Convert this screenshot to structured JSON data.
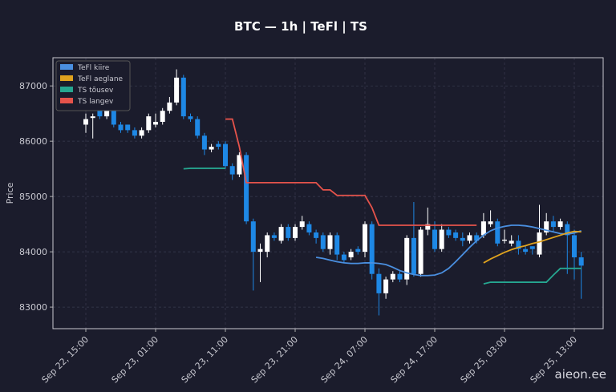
{
  "chart_data": {
    "type": "candlestick",
    "title": "BTC — 1h  |  TeFl  |  TS",
    "y_label": "Price",
    "watermark": "aieon.ee",
    "x": [
      "Sep 22, 15:00",
      "Sep 22, 16:00",
      "Sep 22, 17:00",
      "Sep 22, 18:00",
      "Sep 22, 19:00",
      "Sep 22, 20:00",
      "Sep 22, 21:00",
      "Sep 22, 22:00",
      "Sep 22, 23:00",
      "Sep 23, 00:00",
      "Sep 23, 01:00",
      "Sep 23, 02:00",
      "Sep 23, 03:00",
      "Sep 23, 04:00",
      "Sep 23, 05:00",
      "Sep 23, 06:00",
      "Sep 23, 07:00",
      "Sep 23, 08:00",
      "Sep 23, 09:00",
      "Sep 23, 10:00",
      "Sep 23, 11:00",
      "Sep 23, 12:00",
      "Sep 23, 13:00",
      "Sep 23, 14:00",
      "Sep 23, 15:00",
      "Sep 23, 16:00",
      "Sep 23, 17:00",
      "Sep 23, 18:00",
      "Sep 23, 19:00",
      "Sep 23, 20:00",
      "Sep 23, 21:00",
      "Sep 23, 22:00",
      "Sep 23, 23:00",
      "Sep 24, 00:00",
      "Sep 24, 01:00",
      "Sep 24, 02:00",
      "Sep 24, 03:00",
      "Sep 24, 04:00",
      "Sep 24, 05:00",
      "Sep 24, 06:00",
      "Sep 24, 07:00",
      "Sep 24, 08:00",
      "Sep 24, 09:00",
      "Sep 24, 10:00",
      "Sep 24, 11:00",
      "Sep 24, 12:00",
      "Sep 24, 13:00",
      "Sep 24, 14:00",
      "Sep 24, 15:00",
      "Sep 24, 16:00",
      "Sep 24, 17:00",
      "Sep 24, 18:00",
      "Sep 24, 19:00",
      "Sep 24, 20:00",
      "Sep 24, 21:00",
      "Sep 24, 22:00",
      "Sep 24, 23:00",
      "Sep 25, 00:00",
      "Sep 25, 01:00",
      "Sep 25, 02:00",
      "Sep 25, 03:00",
      "Sep 25, 04:00",
      "Sep 25, 05:00",
      "Sep 25, 06:00",
      "Sep 25, 07:00",
      "Sep 25, 08:00",
      "Sep 25, 09:00",
      "Sep 25, 10:00",
      "Sep 25, 11:00",
      "Sep 25, 12:00",
      "Sep 25, 13:00",
      "Sep 25, 14:00"
    ],
    "open": [
      86300,
      86420,
      86550,
      86450,
      86550,
      86300,
      86300,
      86200,
      86100,
      86200,
      86300,
      86350,
      86550,
      86700,
      87150,
      86450,
      86400,
      86100,
      85850,
      85950,
      85950,
      85550,
      85400,
      85750,
      84550,
      84000,
      84000,
      84300,
      84200,
      84450,
      84250,
      84450,
      84500,
      84350,
      84300,
      84050,
      84300,
      83950,
      83900,
      84050,
      84000,
      84500,
      83600,
      83250,
      83500,
      83600,
      83500,
      84250,
      83600,
      84400,
      84400,
      84050,
      84400,
      84350,
      84250,
      84200,
      84300,
      84300,
      84500,
      84550,
      84200,
      84150,
      84200,
      84050,
      84100,
      83950,
      84350,
      84550,
      84450,
      84500,
      84300,
      83900
    ],
    "high": [
      86500,
      86500,
      86600,
      86600,
      86600,
      86350,
      86300,
      86250,
      86250,
      86500,
      86500,
      86600,
      86800,
      87300,
      87200,
      86500,
      86450,
      86150,
      85950,
      86000,
      86000,
      85600,
      85800,
      85800,
      84600,
      84150,
      84350,
      84350,
      84500,
      84500,
      84500,
      84650,
      84550,
      84400,
      84350,
      84350,
      84350,
      84000,
      84050,
      84100,
      84550,
      84550,
      83700,
      83550,
      83650,
      83650,
      84300,
      84900,
      84450,
      84800,
      84550,
      84500,
      84450,
      84400,
      84350,
      84350,
      84350,
      84700,
      84750,
      84600,
      84400,
      84300,
      84300,
      84100,
      84100,
      84850,
      84700,
      84650,
      84600,
      84550,
      84400,
      84000
    ],
    "low": [
      86150,
      86050,
      86400,
      86400,
      86250,
      86150,
      86150,
      86050,
      86050,
      86150,
      86250,
      86300,
      86500,
      86650,
      86400,
      86350,
      86050,
      85750,
      85800,
      85850,
      85500,
      85300,
      85350,
      84500,
      83300,
      83450,
      83900,
      84200,
      84150,
      84200,
      84200,
      84400,
      84300,
      84150,
      84000,
      83950,
      83850,
      83800,
      83850,
      83950,
      83900,
      83500,
      82850,
      83150,
      83450,
      83450,
      83400,
      83550,
      83550,
      84300,
      84000,
      84000,
      84250,
      84200,
      84100,
      84150,
      84150,
      84250,
      84450,
      84100,
      84150,
      84100,
      83950,
      83950,
      83950,
      83900,
      84300,
      84350,
      84400,
      83600,
      83500,
      83150
    ],
    "close": [
      86400,
      86450,
      86450,
      86550,
      86300,
      86200,
      86200,
      86100,
      86200,
      86450,
      86350,
      86550,
      86700,
      87150,
      86450,
      86400,
      86100,
      85850,
      85900,
      85900,
      85550,
      85400,
      85750,
      84550,
      84000,
      84050,
      84300,
      84250,
      84450,
      84250,
      84450,
      84550,
      84350,
      84250,
      84050,
      84300,
      83950,
      83850,
      84000,
      84000,
      84500,
      83600,
      83250,
      83500,
      83600,
      83500,
      84250,
      83600,
      84400,
      84500,
      84050,
      84400,
      84300,
      84250,
      84200,
      84300,
      84200,
      84550,
      84550,
      84150,
      84220,
      84200,
      84050,
      84000,
      84050,
      84350,
      84550,
      84450,
      84550,
      84300,
      83900,
      83750
    ],
    "up_color": "#ffffff",
    "down_color": "#1e88e5",
    "series": [
      {
        "name": "TeFl kiire",
        "color": "#4a8fe0",
        "values": [
          null,
          null,
          null,
          null,
          null,
          null,
          null,
          null,
          null,
          null,
          null,
          null,
          null,
          null,
          null,
          null,
          null,
          null,
          null,
          null,
          null,
          null,
          null,
          null,
          null,
          null,
          null,
          null,
          null,
          null,
          null,
          null,
          null,
          83900,
          83880,
          83850,
          83820,
          83800,
          83790,
          83790,
          83800,
          83800,
          83790,
          83770,
          83720,
          83660,
          83620,
          83590,
          83570,
          83570,
          83580,
          83620,
          83700,
          83820,
          83950,
          84080,
          84200,
          84300,
          84380,
          84430,
          84460,
          84480,
          84480,
          84470,
          84450,
          84420,
          84390,
          84360,
          84330,
          84320,
          84340,
          84380
        ]
      },
      {
        "name": "TeFl aeglane",
        "color": "#e0a31e",
        "values": [
          null,
          null,
          null,
          null,
          null,
          null,
          null,
          null,
          null,
          null,
          null,
          null,
          null,
          null,
          null,
          null,
          null,
          null,
          null,
          null,
          null,
          null,
          null,
          null,
          null,
          null,
          null,
          null,
          null,
          null,
          null,
          null,
          null,
          null,
          null,
          null,
          null,
          null,
          null,
          null,
          null,
          null,
          null,
          null,
          null,
          null,
          null,
          null,
          null,
          null,
          null,
          null,
          null,
          null,
          null,
          null,
          null,
          83800,
          83870,
          83930,
          83990,
          84040,
          84080,
          84110,
          84150,
          84180,
          84220,
          84260,
          84300,
          84340,
          84370,
          84360
        ]
      },
      {
        "name": "TS tõusev",
        "color": "#26a690",
        "values": [
          null,
          null,
          null,
          null,
          null,
          null,
          null,
          null,
          null,
          null,
          null,
          null,
          null,
          null,
          85500,
          85510,
          85510,
          85510,
          85510,
          85510,
          85510,
          null,
          null,
          null,
          null,
          null,
          null,
          null,
          null,
          null,
          null,
          null,
          null,
          null,
          null,
          null,
          null,
          null,
          null,
          null,
          null,
          null,
          null,
          null,
          null,
          null,
          null,
          null,
          null,
          null,
          null,
          null,
          null,
          null,
          null,
          null,
          null,
          83420,
          83450,
          83450,
          83450,
          83450,
          83450,
          83450,
          83450,
          83450,
          83450,
          83580,
          83700,
          83700,
          83700,
          83700
        ]
      },
      {
        "name": "TS langev",
        "color": "#e5534b",
        "values": [
          null,
          null,
          null,
          null,
          null,
          null,
          null,
          null,
          null,
          null,
          null,
          null,
          null,
          null,
          null,
          null,
          null,
          null,
          null,
          null,
          86400,
          86400,
          85900,
          85250,
          85250,
          85250,
          85250,
          85250,
          85250,
          85250,
          85250,
          85250,
          85250,
          85250,
          85120,
          85120,
          85020,
          85020,
          85020,
          85020,
          85020,
          84800,
          84480,
          84480,
          84480,
          84480,
          84480,
          84480,
          84480,
          84480,
          84480,
          84480,
          84480,
          84480,
          84480,
          84480,
          84480,
          null,
          null,
          null,
          null,
          null,
          null,
          null,
          null,
          null,
          null,
          null,
          null,
          null,
          null,
          null
        ]
      }
    ],
    "ylim": [
      82610,
      87510
    ],
    "yticks": [
      83000,
      84000,
      85000,
      86000,
      87000
    ],
    "xticks": [
      "Sep 22, 15:00",
      "Sep 23, 01:00",
      "Sep 23, 11:00",
      "Sep 23, 21:00",
      "Sep 24, 07:00",
      "Sep 24, 17:00",
      "Sep 25, 03:00",
      "Sep 25, 13:00"
    ],
    "grid": true,
    "legend": "upper left"
  }
}
